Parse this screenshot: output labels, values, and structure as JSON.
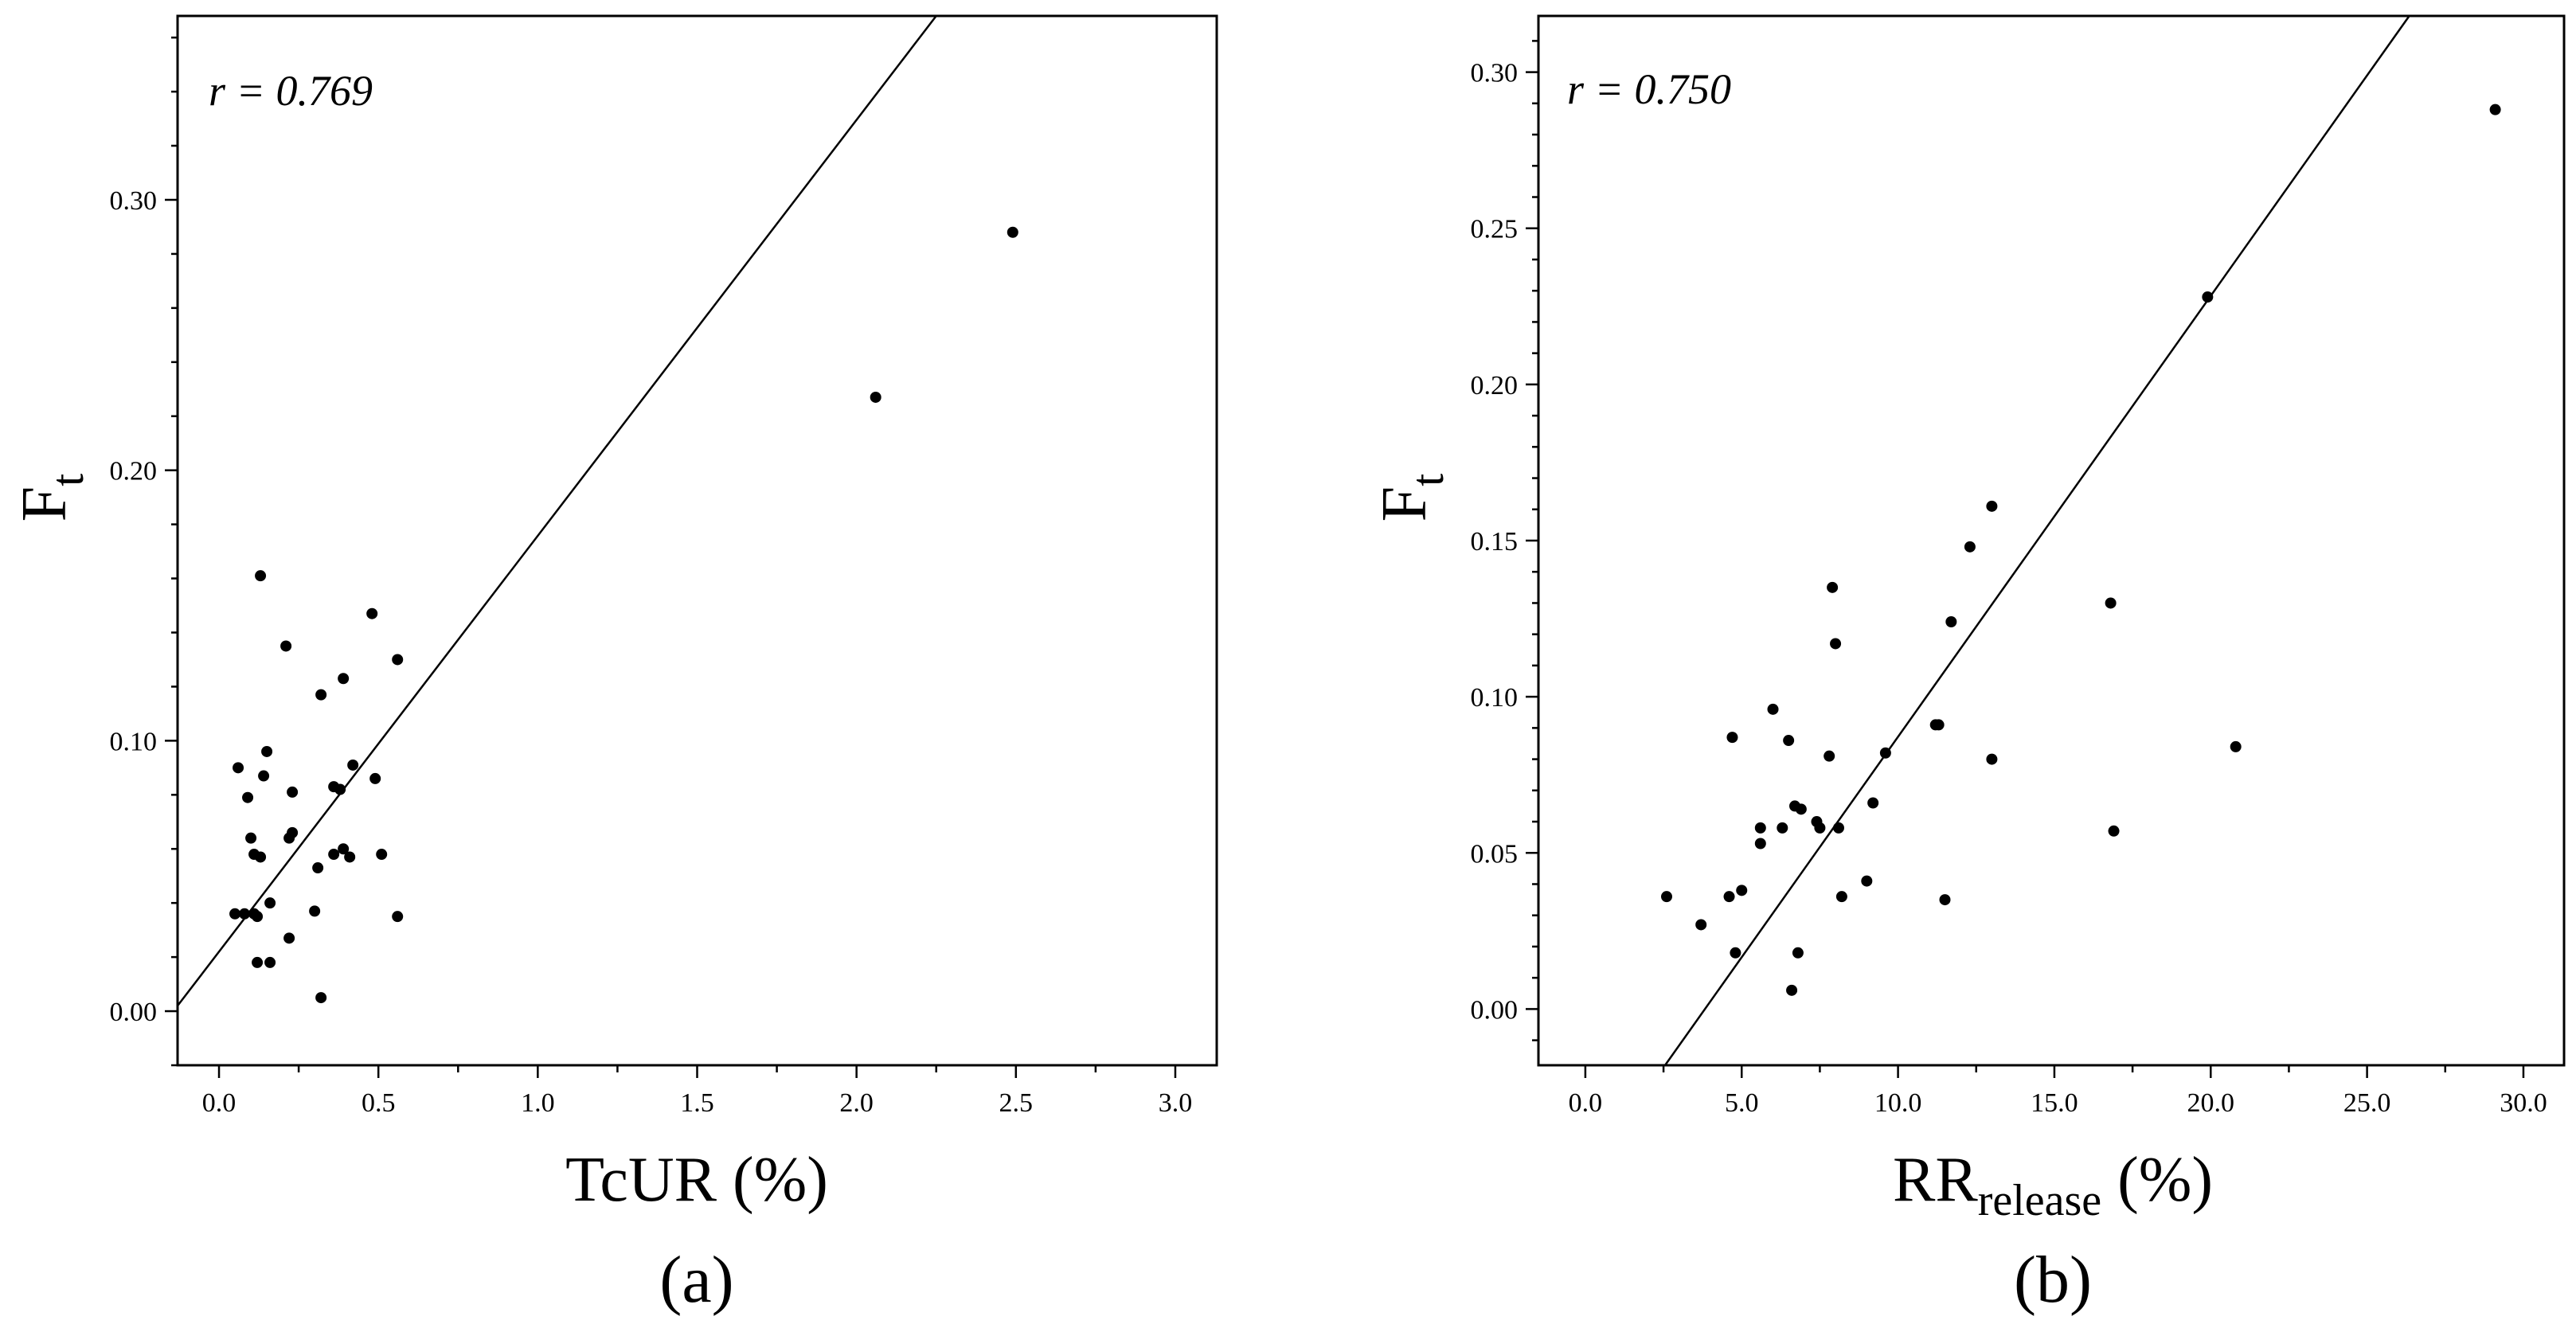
{
  "chart_data": [
    {
      "type": "scatter",
      "panel_label": "(a)",
      "annotation": "r = 0.769",
      "xlabel": "TcUR (%)",
      "xlabel_main": "TcUR (%)",
      "ylabel_main": "F",
      "ylabel_sub": "t",
      "xlim": [
        -0.13,
        3.13
      ],
      "ylim": [
        -0.02,
        0.368
      ],
      "x_ticks": [
        "0.0",
        "0.5",
        "1.0",
        "1.5",
        "2.0",
        "2.5",
        "3.0"
      ],
      "x_tick_values": [
        0,
        0.5,
        1.0,
        1.5,
        2.0,
        2.5,
        3.0
      ],
      "y_ticks": [
        "0.00",
        "0.10",
        "0.20",
        "0.30"
      ],
      "y_tick_values": [
        0,
        0.1,
        0.2,
        0.3
      ],
      "fit_line": {
        "x": [
          -0.13,
          2.25
        ],
        "y": [
          0.002,
          0.368
        ]
      },
      "points": [
        [
          0.05,
          0.036
        ],
        [
          0.06,
          0.09
        ],
        [
          0.08,
          0.036
        ],
        [
          0.09,
          0.079
        ],
        [
          0.1,
          0.064
        ],
        [
          0.11,
          0.036
        ],
        [
          0.11,
          0.058
        ],
        [
          0.12,
          0.018
        ],
        [
          0.12,
          0.035
        ],
        [
          0.13,
          0.057
        ],
        [
          0.13,
          0.161
        ],
        [
          0.14,
          0.087
        ],
        [
          0.15,
          0.096
        ],
        [
          0.16,
          0.018
        ],
        [
          0.16,
          0.04
        ],
        [
          0.21,
          0.135
        ],
        [
          0.22,
          0.027
        ],
        [
          0.22,
          0.064
        ],
        [
          0.23,
          0.081
        ],
        [
          0.23,
          0.066
        ],
        [
          0.3,
          0.037
        ],
        [
          0.31,
          0.053
        ],
        [
          0.32,
          0.117
        ],
        [
          0.32,
          0.005
        ],
        [
          0.36,
          0.058
        ],
        [
          0.36,
          0.083
        ],
        [
          0.38,
          0.082
        ],
        [
          0.39,
          0.06
        ],
        [
          0.39,
          0.123
        ],
        [
          0.41,
          0.057
        ],
        [
          0.42,
          0.091
        ],
        [
          0.48,
          0.147
        ],
        [
          0.49,
          0.086
        ],
        [
          0.51,
          0.058
        ],
        [
          0.56,
          0.13
        ],
        [
          0.56,
          0.035
        ],
        [
          2.06,
          0.227
        ],
        [
          2.49,
          0.288
        ]
      ]
    },
    {
      "type": "scatter",
      "panel_label": "(b)",
      "annotation": "r = 0.750",
      "xlabel": "RRrelease (%)",
      "xlabel_main": "RR",
      "xlabel_sub": "release",
      "xlabel_tail": " (%)",
      "ylabel_main": "F",
      "ylabel_sub": "t",
      "xlim": [
        -1.5,
        31.3
      ],
      "ylim": [
        -0.018,
        0.318
      ],
      "x_ticks": [
        "0.0",
        "5.0",
        "10.0",
        "15.0",
        "20.0",
        "25.0",
        "30.0"
      ],
      "x_tick_values": [
        0,
        5,
        10,
        15,
        20,
        25,
        30
      ],
      "y_ticks": [
        "0.00",
        "0.05",
        "0.10",
        "0.15",
        "0.20",
        "0.25",
        "0.30"
      ],
      "y_tick_values": [
        0,
        0.05,
        0.1,
        0.15,
        0.2,
        0.25,
        0.3
      ],
      "fit_line": {
        "x": [
          2.55,
          26.35
        ],
        "y": [
          -0.018,
          0.318
        ]
      },
      "points": [
        [
          2.6,
          0.036
        ],
        [
          3.7,
          0.027
        ],
        [
          4.6,
          0.036
        ],
        [
          4.7,
          0.087
        ],
        [
          4.8,
          0.018
        ],
        [
          5.0,
          0.038
        ],
        [
          5.6,
          0.058
        ],
        [
          5.6,
          0.053
        ],
        [
          6.0,
          0.096
        ],
        [
          6.3,
          0.058
        ],
        [
          6.5,
          0.086
        ],
        [
          6.6,
          0.006
        ],
        [
          6.7,
          0.065
        ],
        [
          6.8,
          0.018
        ],
        [
          6.9,
          0.064
        ],
        [
          7.4,
          0.06
        ],
        [
          7.5,
          0.058
        ],
        [
          7.8,
          0.081
        ],
        [
          7.9,
          0.135
        ],
        [
          8.0,
          0.117
        ],
        [
          8.1,
          0.058
        ],
        [
          8.2,
          0.036
        ],
        [
          9.0,
          0.041
        ],
        [
          9.2,
          0.066
        ],
        [
          9.6,
          0.082
        ],
        [
          11.2,
          0.091
        ],
        [
          11.3,
          0.091
        ],
        [
          11.5,
          0.035
        ],
        [
          11.7,
          0.124
        ],
        [
          12.3,
          0.148
        ],
        [
          13.0,
          0.08
        ],
        [
          13.0,
          0.161
        ],
        [
          16.8,
          0.13
        ],
        [
          16.9,
          0.057
        ],
        [
          19.9,
          0.228
        ],
        [
          20.8,
          0.084
        ],
        [
          29.1,
          0.288
        ]
      ]
    }
  ]
}
